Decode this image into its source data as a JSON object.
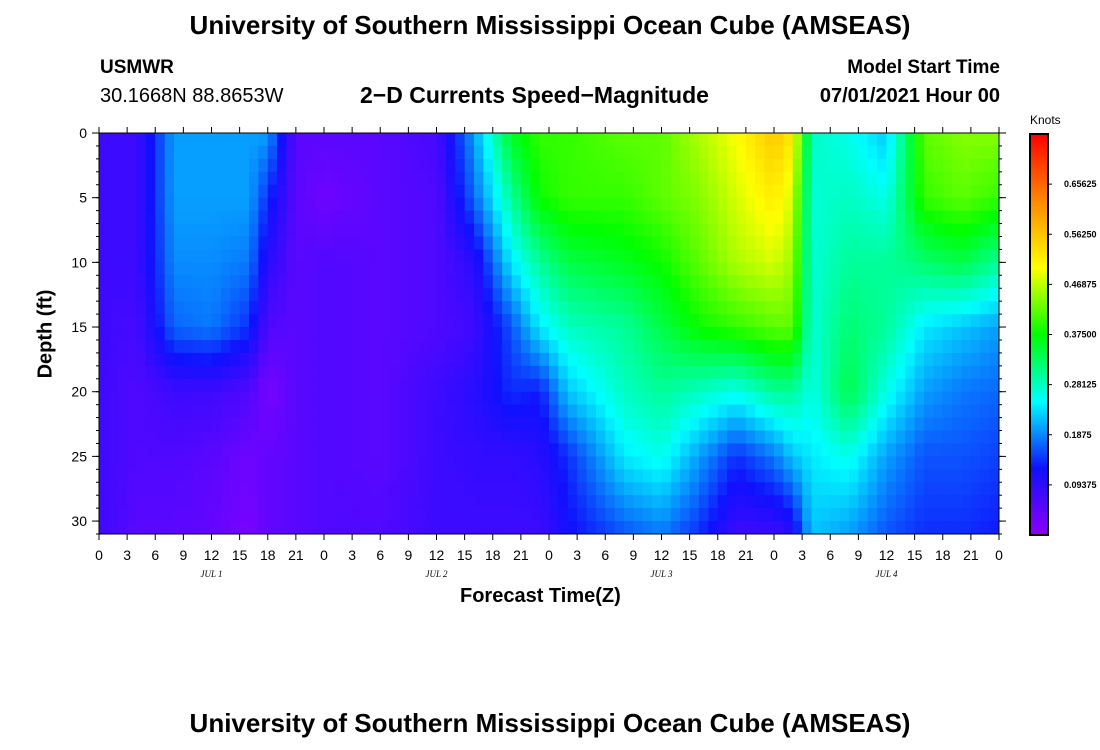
{
  "header": {
    "title": "University of Southern Mississippi Ocean Cube (AMSEAS)",
    "station": "USMWR",
    "coords": "30.1668N  88.8653W",
    "subtitle": "2−D Currents Speed−Magnitude",
    "model_start_label": "Model Start Time",
    "model_start_value": "07/01/2021 Hour 00"
  },
  "footer": {
    "title": "University of Southern Mississippi Ocean Cube (AMSEAS)"
  },
  "chart_data": {
    "type": "heatmap",
    "xlabel": "Forecast Time(Z)",
    "ylabel": "Depth (ft)",
    "x_hours": [
      0,
      96
    ],
    "x_tick_step_hours": 3,
    "x_tick_labels": [
      "0",
      "3",
      "6",
      "9",
      "12",
      "15",
      "18",
      "21",
      "0",
      "3",
      "6",
      "9",
      "12",
      "15",
      "18",
      "21",
      "0",
      "3",
      "6",
      "9",
      "12",
      "15",
      "18",
      "21",
      "0",
      "3",
      "6",
      "9",
      "12",
      "15",
      "18",
      "21",
      "0"
    ],
    "day_labels": [
      {
        "label": "JUL 1",
        "hour": 12
      },
      {
        "label": "JUL 2",
        "hour": 36
      },
      {
        "label": "JUL 3",
        "hour": 60
      },
      {
        "label": "JUL 4",
        "hour": 84
      }
    ],
    "ylim": [
      0,
      31
    ],
    "y_ticks": [
      0,
      5,
      10,
      15,
      20,
      25,
      30
    ],
    "colorbar": {
      "title": "Knots",
      "range": [
        0,
        0.75
      ],
      "tick_values": [
        0.09375,
        0.1875,
        0.28125,
        0.375,
        0.46875,
        0.5625,
        0.65625
      ],
      "tick_labels": [
        "0.09375",
        "0.1875",
        "0.28125",
        "0.37500",
        "0.46875",
        "0.56250",
        "0.65625"
      ],
      "colors": [
        "#8b00ff",
        "#1010ff",
        "#00ffff",
        "#00ff00",
        "#ffff00",
        "#ff8800",
        "#ff0000"
      ]
    },
    "depths_ft": [
      0,
      5,
      10,
      15,
      20,
      25,
      31
    ],
    "times_h": [
      0,
      4,
      8,
      12,
      16,
      18,
      21,
      24,
      30,
      36,
      40,
      44,
      47,
      50,
      56,
      60,
      64,
      68,
      72,
      74,
      76,
      80,
      84,
      88,
      92,
      96
    ],
    "values": [
      [
        0.08,
        0.08,
        0.08,
        0.08,
        0.08,
        0.08,
        0.08
      ],
      [
        0.08,
        0.08,
        0.08,
        0.07,
        0.06,
        0.06,
        0.05
      ],
      [
        0.2,
        0.2,
        0.19,
        0.17,
        0.08,
        0.06,
        0.05
      ],
      [
        0.2,
        0.2,
        0.19,
        0.18,
        0.08,
        0.05,
        0.04
      ],
      [
        0.2,
        0.2,
        0.18,
        0.14,
        0.06,
        0.03,
        0.02
      ],
      [
        0.2,
        0.14,
        0.1,
        0.06,
        0.02,
        0.04,
        0.04
      ],
      [
        0.05,
        0.05,
        0.05,
        0.05,
        0.05,
        0.05,
        0.05
      ],
      [
        0.05,
        0.03,
        0.06,
        0.06,
        0.06,
        0.06,
        0.06
      ],
      [
        0.05,
        0.05,
        0.05,
        0.05,
        0.05,
        0.05,
        0.06
      ],
      [
        0.07,
        0.06,
        0.06,
        0.06,
        0.08,
        0.08,
        0.08
      ],
      [
        0.2,
        0.17,
        0.1,
        0.08,
        0.1,
        0.09,
        0.08
      ],
      [
        0.36,
        0.3,
        0.24,
        0.16,
        0.14,
        0.09,
        0.08
      ],
      [
        0.4,
        0.38,
        0.3,
        0.24,
        0.13,
        0.1,
        0.08
      ],
      [
        0.4,
        0.4,
        0.34,
        0.28,
        0.22,
        0.14,
        0.12
      ],
      [
        0.42,
        0.4,
        0.36,
        0.3,
        0.28,
        0.24,
        0.16
      ],
      [
        0.42,
        0.42,
        0.38,
        0.34,
        0.3,
        0.26,
        0.18
      ],
      [
        0.46,
        0.44,
        0.42,
        0.38,
        0.28,
        0.2,
        0.14
      ],
      [
        0.5,
        0.48,
        0.46,
        0.4,
        0.26,
        0.14,
        0.08
      ],
      [
        0.56,
        0.52,
        0.48,
        0.42,
        0.3,
        0.18,
        0.08
      ],
      [
        0.52,
        0.48,
        0.45,
        0.42,
        0.3,
        0.22,
        0.1
      ],
      [
        0.28,
        0.27,
        0.27,
        0.27,
        0.26,
        0.24,
        0.22
      ],
      [
        0.26,
        0.28,
        0.3,
        0.32,
        0.34,
        0.26,
        0.2
      ],
      [
        0.22,
        0.26,
        0.3,
        0.3,
        0.26,
        0.2,
        0.16
      ],
      [
        0.42,
        0.4,
        0.32,
        0.24,
        0.2,
        0.16,
        0.14
      ],
      [
        0.44,
        0.42,
        0.34,
        0.22,
        0.18,
        0.16,
        0.14
      ],
      [
        0.44,
        0.4,
        0.3,
        0.2,
        0.17,
        0.15,
        0.13
      ]
    ]
  }
}
